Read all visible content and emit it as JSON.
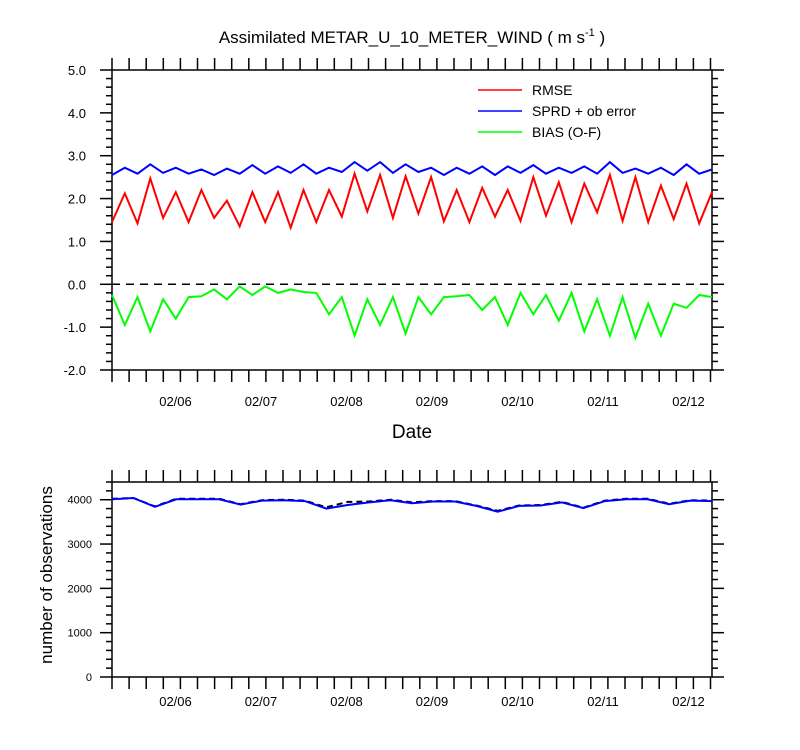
{
  "chart_data": [
    {
      "type": "line",
      "title_main": "Assimilated METAR_U_10_METER_WIND ( m s",
      "title_sup": "-1",
      "title_end": " )",
      "xlabel": "Date",
      "ylabel": "",
      "ylim": [
        -2.0,
        5.0
      ],
      "yticks": [
        "5.0",
        "4.0",
        "3.0",
        "2.0",
        "1.0",
        "0.0",
        "-1.0",
        "-2.0"
      ],
      "xticks": [
        "02/06",
        "02/07",
        "02/08",
        "02/09",
        "02/10",
        "02/11",
        "02/12"
      ],
      "legend_position": "top-right",
      "zero_line": "dashed",
      "series": [
        {
          "name": "RMSE",
          "color": "#ff0000",
          "values": [
            1.45,
            2.12,
            1.42,
            2.47,
            1.55,
            2.15,
            1.45,
            2.2,
            1.55,
            1.95,
            1.35,
            2.15,
            1.45,
            2.15,
            1.32,
            2.2,
            1.45,
            2.2,
            1.58,
            2.58,
            1.7,
            2.55,
            1.55,
            2.52,
            1.65,
            2.5,
            1.47,
            2.2,
            1.45,
            2.25,
            1.58,
            2.2,
            1.48,
            2.5,
            1.6,
            2.38,
            1.45,
            2.35,
            1.68,
            2.55,
            1.48,
            2.5,
            1.45,
            2.3,
            1.52,
            2.35,
            1.42,
            2.15
          ]
        },
        {
          "name": "SPRD + ob error",
          "color": "#0000ff",
          "values": [
            2.55,
            2.72,
            2.58,
            2.8,
            2.6,
            2.72,
            2.58,
            2.68,
            2.55,
            2.7,
            2.58,
            2.78,
            2.58,
            2.75,
            2.6,
            2.8,
            2.58,
            2.72,
            2.62,
            2.85,
            2.65,
            2.85,
            2.6,
            2.8,
            2.62,
            2.72,
            2.55,
            2.72,
            2.58,
            2.75,
            2.55,
            2.75,
            2.6,
            2.78,
            2.58,
            2.72,
            2.6,
            2.75,
            2.58,
            2.85,
            2.6,
            2.7,
            2.58,
            2.72,
            2.55,
            2.8,
            2.58,
            2.68
          ]
        },
        {
          "name": "BIAS (O-F)",
          "color": "#00ff00",
          "values": [
            -0.25,
            -0.95,
            -0.3,
            -1.1,
            -0.35,
            -0.8,
            -0.3,
            -0.28,
            -0.12,
            -0.35,
            -0.05,
            -0.25,
            -0.05,
            -0.2,
            -0.12,
            -0.18,
            -0.2,
            -0.7,
            -0.3,
            -1.2,
            -0.35,
            -0.95,
            -0.3,
            -1.15,
            -0.3,
            -0.7,
            -0.3,
            -0.28,
            -0.25,
            -0.6,
            -0.3,
            -0.95,
            -0.2,
            -0.7,
            -0.25,
            -0.85,
            -0.2,
            -1.1,
            -0.35,
            -1.2,
            -0.3,
            -1.25,
            -0.45,
            -1.2,
            -0.45,
            -0.55,
            -0.25,
            -0.3
          ]
        }
      ]
    },
    {
      "type": "line",
      "ylabel": "number of observations",
      "xlabel": "",
      "ylim": [
        0,
        4400
      ],
      "yticks": [
        "0",
        "1000",
        "2000",
        "3000",
        "4000"
      ],
      "xticks": [
        "02/06",
        "02/07",
        "02/08",
        "02/09",
        "02/10",
        "02/11",
        "02/12"
      ],
      "series": [
        {
          "color": "#000000",
          "style": "dashed",
          "values": [
            4020,
            4040,
            3850,
            4020,
            4020,
            4020,
            3900,
            3990,
            4000,
            3980,
            3830,
            3950,
            3960,
            4000,
            3940,
            3970,
            3970,
            3870,
            3750,
            3870,
            3880,
            3950,
            3820,
            3980,
            4020,
            4020,
            3910,
            3990,
            3980
          ]
        },
        {
          "color": "#0000ff",
          "style": "solid",
          "values": [
            4010,
            4040,
            3840,
            4010,
            4010,
            4010,
            3890,
            3980,
            3990,
            3970,
            3800,
            3880,
            3940,
            3990,
            3920,
            3960,
            3960,
            3860,
            3730,
            3860,
            3870,
            3940,
            3810,
            3970,
            4010,
            4010,
            3900,
            3980,
            3970
          ]
        }
      ]
    }
  ]
}
